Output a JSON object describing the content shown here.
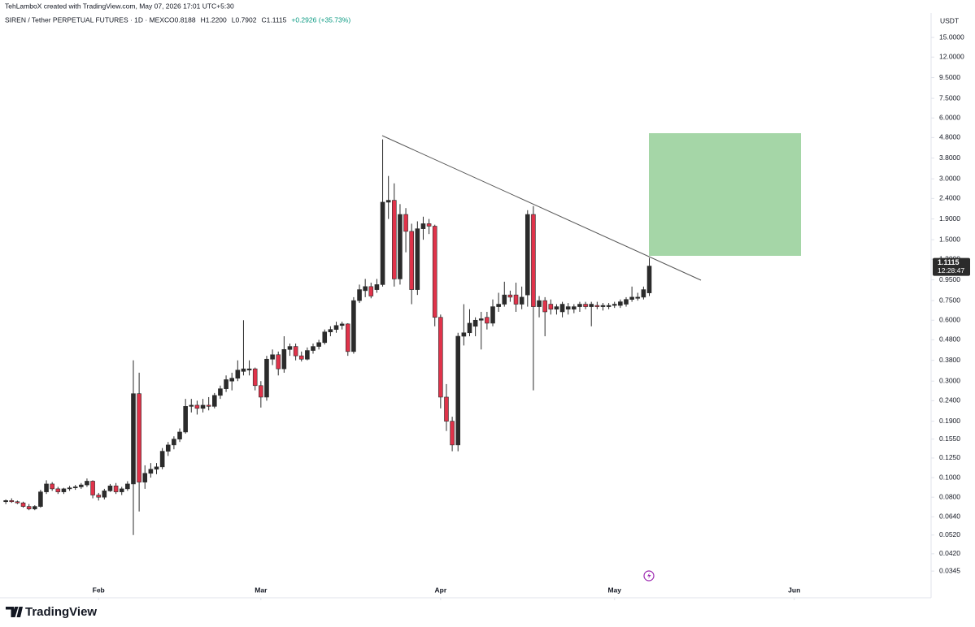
{
  "header": {
    "credit": "TehLamboX created with TradingView.com, May 07, 2026 17:01 UTC+5:30",
    "symbol": "SIREN / Tether PERPETUAL FUTURES · 1D · MEXC",
    "stats": [
      "O0.8188",
      "H1.2200",
      "L0.7902",
      "C1.1115",
      "+0.2926 (+35.73%)"
    ]
  },
  "footer": {
    "brand": "TradingView"
  },
  "chart_data": {
    "type": "candlestick",
    "currency": "USDT",
    "countdown": "12:28:47",
    "log_scale": true,
    "grid": false,
    "up_color": "#2b2b2b",
    "down_color": "#e0334a",
    "wick_color": "#2b2b2b",
    "xlim": [
      -0.3,
      159.6
    ],
    "xticks": [
      {
        "value": 16,
        "label": "Feb"
      },
      {
        "value": 44,
        "label": "Mar"
      },
      {
        "value": 75,
        "label": "Apr"
      },
      {
        "value": 105,
        "label": "May"
      },
      {
        "value": 136,
        "label": "Jun"
      }
    ],
    "ylim": [
      0.0257,
      19.1
    ],
    "yticks": [
      {
        "value": 15,
        "label": "15.0000"
      },
      {
        "value": 12,
        "label": "12.0000"
      },
      {
        "value": 9.5,
        "label": "9.5000"
      },
      {
        "value": 7.5,
        "label": "7.5000"
      },
      {
        "value": 6,
        "label": "6.0000"
      },
      {
        "value": 4.8,
        "label": "4.8000"
      },
      {
        "value": 3.8,
        "label": "3.8000"
      },
      {
        "value": 3,
        "label": "3.0000"
      },
      {
        "value": 2.4,
        "label": "2.4000"
      },
      {
        "value": 1.9,
        "label": "1.9000"
      },
      {
        "value": 1.5,
        "label": "1.5000"
      },
      {
        "value": 1.2,
        "label": "1.2000"
      },
      {
        "value": 0.95,
        "label": "0.9500"
      },
      {
        "value": 0.75,
        "label": "0.7500"
      },
      {
        "value": 0.6,
        "label": "0.6000"
      },
      {
        "value": 0.48,
        "label": "0.4800"
      },
      {
        "value": 0.38,
        "label": "0.3800"
      },
      {
        "value": 0.3,
        "label": "0.3000"
      },
      {
        "value": 0.24,
        "label": "0.2400"
      },
      {
        "value": 0.19,
        "label": "0.1900"
      },
      {
        "value": 0.155,
        "label": "0.1550"
      },
      {
        "value": 0.125,
        "label": "0.1250"
      },
      {
        "value": 0.1,
        "label": "0.1000"
      },
      {
        "value": 0.08,
        "label": "0.0800"
      },
      {
        "value": 0.064,
        "label": "0.0640"
      },
      {
        "value": 0.052,
        "label": "0.0520"
      },
      {
        "value": 0.042,
        "label": "0.0420"
      },
      {
        "value": 0.0345,
        "label": "0.0345"
      }
    ],
    "open": [
      0.076,
      0.077,
      0.076,
      0.075,
      0.072,
      0.07,
      0.072,
      0.085,
      0.093,
      0.088,
      0.085,
      0.088,
      0.089,
      0.09,
      0.092,
      0.096,
      0.082,
      0.08,
      0.086,
      0.091,
      0.085,
      0.088,
      0.093,
      0.26,
      0.095,
      0.105,
      0.11,
      0.113,
      0.135,
      0.145,
      0.155,
      0.168,
      0.225,
      0.228,
      0.22,
      0.228,
      0.225,
      0.255,
      0.275,
      0.3,
      0.31,
      0.335,
      0.34,
      0.345,
      0.285,
      0.25,
      0.385,
      0.405,
      0.345,
      0.43,
      0.445,
      0.4,
      0.385,
      0.425,
      0.445,
      0.465,
      0.525,
      0.54,
      0.565,
      0.575,
      0.42,
      0.75,
      0.84,
      0.88,
      0.85,
      0.9,
      2.3,
      2.35,
      0.96,
      2.0,
      1.65,
      0.85,
      1.7,
      1.8,
      1.75,
      0.62,
      0.25,
      0.19,
      0.145,
      0.5,
      0.52,
      0.56,
      0.6,
      0.62,
      0.58,
      0.7,
      0.72,
      0.8,
      0.8,
      0.72,
      0.8,
      2.0,
      0.7,
      0.75,
      0.72,
      0.68,
      0.66,
      0.68,
      0.68,
      0.7,
      0.72,
      0.7,
      0.71,
      0.7,
      0.7,
      0.71,
      0.71,
      0.72,
      0.76,
      0.77,
      0.78,
      0.8188
    ],
    "high": [
      0.078,
      0.079,
      0.077,
      0.076,
      0.074,
      0.073,
      0.087,
      0.097,
      0.095,
      0.09,
      0.089,
      0.091,
      0.092,
      0.094,
      0.099,
      0.097,
      0.084,
      0.088,
      0.093,
      0.094,
      0.09,
      0.096,
      0.38,
      0.33,
      0.115,
      0.118,
      0.118,
      0.14,
      0.15,
      0.16,
      0.175,
      0.245,
      0.245,
      0.24,
      0.245,
      0.25,
      0.262,
      0.285,
      0.32,
      0.33,
      0.38,
      0.6,
      0.38,
      0.35,
      0.3,
      0.4,
      0.43,
      0.42,
      0.5,
      0.46,
      0.46,
      0.42,
      0.44,
      0.46,
      0.48,
      0.54,
      0.56,
      0.59,
      0.59,
      0.58,
      0.78,
      0.9,
      0.96,
      0.92,
      0.96,
      4.7,
      3.1,
      2.85,
      2.25,
      2.15,
      1.8,
      1.85,
      1.95,
      1.9,
      1.78,
      0.64,
      0.29,
      0.2,
      0.52,
      0.72,
      0.68,
      0.62,
      0.66,
      0.66,
      0.76,
      0.82,
      0.93,
      0.84,
      0.92,
      0.88,
      2.1,
      2.2,
      0.79,
      0.78,
      0.76,
      0.72,
      0.74,
      0.73,
      0.72,
      0.74,
      0.74,
      0.74,
      0.74,
      0.73,
      0.73,
      0.74,
      0.76,
      0.78,
      0.88,
      0.82,
      0.88,
      1.22
    ],
    "low": [
      0.074,
      0.075,
      0.074,
      0.071,
      0.069,
      0.069,
      0.071,
      0.083,
      0.086,
      0.083,
      0.083,
      0.086,
      0.087,
      0.088,
      0.09,
      0.079,
      0.077,
      0.078,
      0.085,
      0.083,
      0.082,
      0.086,
      0.052,
      0.068,
      0.088,
      0.1,
      0.104,
      0.11,
      0.128,
      0.138,
      0.15,
      0.165,
      0.21,
      0.205,
      0.21,
      0.215,
      0.22,
      0.245,
      0.265,
      0.27,
      0.3,
      0.32,
      0.32,
      0.27,
      0.222,
      0.24,
      0.36,
      0.32,
      0.33,
      0.4,
      0.38,
      0.375,
      0.38,
      0.41,
      0.43,
      0.455,
      0.5,
      0.52,
      0.54,
      0.4,
      0.41,
      0.73,
      0.78,
      0.77,
      0.82,
      0.88,
      1.9,
      0.88,
      0.9,
      1.3,
      0.72,
      0.8,
      1.5,
      1.6,
      0.56,
      0.22,
      0.17,
      0.135,
      0.135,
      0.45,
      0.5,
      0.5,
      0.43,
      0.54,
      0.56,
      0.66,
      0.7,
      0.74,
      0.66,
      0.68,
      0.7,
      0.27,
      0.62,
      0.5,
      0.64,
      0.64,
      0.62,
      0.64,
      0.65,
      0.66,
      0.68,
      0.56,
      0.68,
      0.67,
      0.68,
      0.69,
      0.69,
      0.7,
      0.74,
      0.75,
      0.76,
      0.7902
    ],
    "close": [
      0.077,
      0.076,
      0.075,
      0.072,
      0.07,
      0.072,
      0.085,
      0.093,
      0.088,
      0.085,
      0.088,
      0.089,
      0.09,
      0.092,
      0.096,
      0.082,
      0.08,
      0.086,
      0.091,
      0.085,
      0.088,
      0.093,
      0.26,
      0.095,
      0.105,
      0.11,
      0.113,
      0.135,
      0.145,
      0.155,
      0.168,
      0.225,
      0.228,
      0.22,
      0.228,
      0.225,
      0.255,
      0.275,
      0.305,
      0.31,
      0.34,
      0.345,
      0.345,
      0.285,
      0.25,
      0.385,
      0.405,
      0.345,
      0.43,
      0.445,
      0.4,
      0.385,
      0.425,
      0.445,
      0.465,
      0.525,
      0.54,
      0.565,
      0.575,
      0.42,
      0.75,
      0.85,
      0.88,
      0.79,
      0.9,
      2.3,
      2.35,
      0.96,
      2.0,
      1.65,
      0.85,
      1.7,
      1.8,
      1.75,
      0.62,
      0.25,
      0.19,
      0.145,
      0.5,
      0.52,
      0.58,
      0.6,
      0.61,
      0.58,
      0.7,
      0.72,
      0.8,
      0.78,
      0.72,
      0.78,
      2.0,
      0.7,
      0.75,
      0.66,
      0.68,
      0.7,
      0.72,
      0.7,
      0.7,
      0.72,
      0.7,
      0.72,
      0.7,
      0.71,
      0.71,
      0.72,
      0.74,
      0.76,
      0.78,
      0.78,
      0.85,
      1.1115
    ]
  }
}
